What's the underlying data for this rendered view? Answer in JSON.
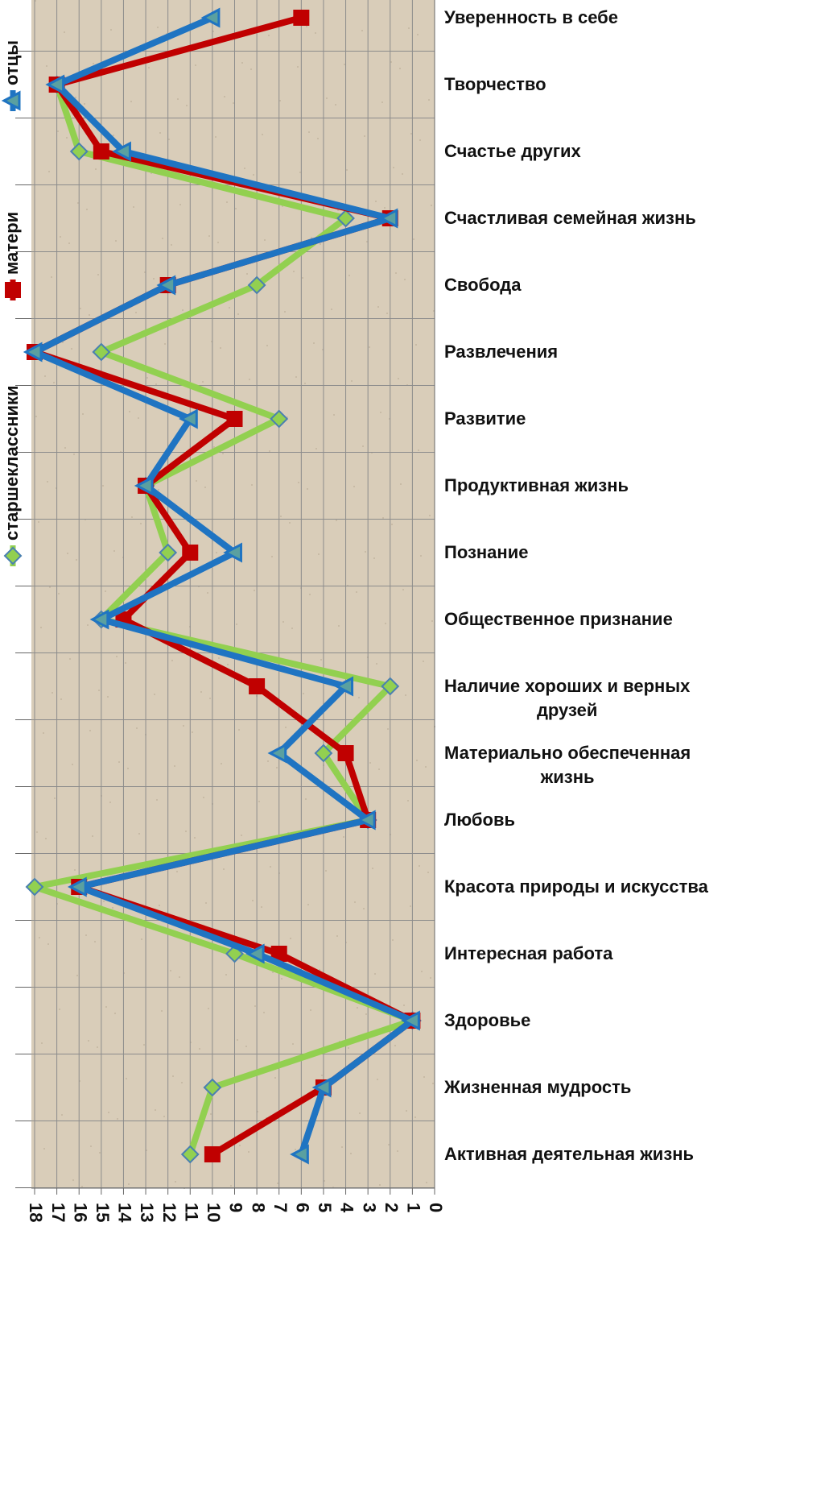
{
  "chart_data": {
    "type": "line",
    "categories": [
      "Уверенность в себе",
      "Творчество",
      "Счастье других",
      "Счастливая семейная жизнь",
      "Свобода",
      "Развлечения",
      "Развитие",
      "Продуктивная жизнь",
      "Познание",
      "Общественное признание",
      "Наличие хороших и верных\nдрузей",
      "Материально обеспеченная\nжизнь",
      "Любовь",
      "Красота природы и искусства",
      "Интересная работа",
      "Здоровье",
      "Жизненная мудрость",
      "Активная деятельная жизнь"
    ],
    "series": [
      {
        "name": "отцы",
        "color": "#1f74c2",
        "marker": "triangle",
        "values": [
          10,
          17,
          14,
          2,
          12,
          18,
          11,
          13,
          9,
          15,
          4,
          7,
          3,
          16,
          8,
          1,
          5,
          6
        ]
      },
      {
        "name": "матери",
        "color": "#c00000",
        "marker": "square",
        "values": [
          6,
          17,
          15,
          2,
          12,
          18,
          9,
          13,
          11,
          14,
          8,
          4,
          3,
          16,
          7,
          1,
          5,
          10
        ]
      },
      {
        "name": "старшеклассники",
        "color": "#92d050",
        "marker": "diamond",
        "values": [
          null,
          17,
          16,
          4,
          8,
          15,
          7,
          13,
          12,
          15,
          2,
          5,
          3,
          18,
          9,
          1,
          10,
          11
        ]
      }
    ],
    "xlim": [
      18,
      0
    ],
    "xticks": [
      0,
      1,
      2,
      3,
      4,
      5,
      6,
      7,
      8,
      9,
      10,
      11,
      12,
      13,
      14,
      15,
      16,
      17,
      18
    ],
    "grid": true,
    "legend": "left"
  }
}
